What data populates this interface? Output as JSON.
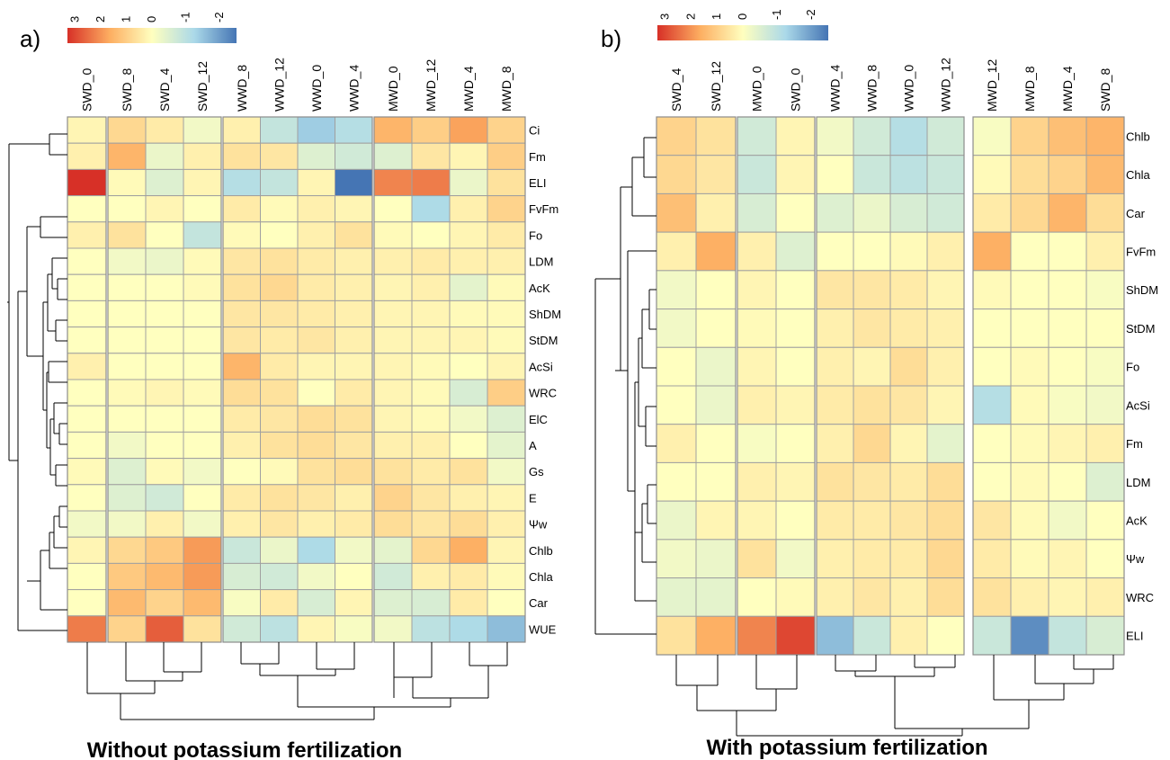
{
  "chart_data": [
    {
      "type": "heatmap",
      "panel_label": "a)",
      "title": "Without potassium fertilization",
      "colorbar": {
        "ticks": [
          "3",
          "2",
          "1",
          "0",
          "-1",
          "-2"
        ],
        "min": -2.5,
        "max": 3.3,
        "colors": [
          "#d73027",
          "#fdae61",
          "#ffffbf",
          "#abd9e9",
          "#4575b4"
        ]
      },
      "col_groups": [
        [
          "SWD_0"
        ],
        [
          "SWD_8",
          "SWD_4",
          "SWD_12"
        ],
        [
          "WWD_8",
          "WWD_12",
          "WWD_0",
          "WWD_4"
        ],
        [
          "MWD_0",
          "MWD_12",
          "MWD_4",
          "MWD_8"
        ]
      ],
      "rows": [
        "Ci",
        "Fm",
        "ELI",
        "FvFm",
        "Fo",
        "LDM",
        "AcK",
        "ShDM",
        "StDM",
        "AcSi",
        "WRC",
        "ElC",
        "A",
        "Gs",
        "E",
        "Ψw",
        "Chlb",
        "Chla",
        "Car",
        "WUE"
      ],
      "values": [
        [
          0.2,
          0.8,
          0.4,
          -0.2,
          0.3,
          -0.9,
          -1.4,
          -1.1,
          1.5,
          1.0,
          1.8,
          0.9
        ],
        [
          0.3,
          1.5,
          -0.3,
          0.3,
          0.6,
          0.5,
          -0.5,
          -0.7,
          -0.5,
          0.5,
          0.2,
          1.0
        ],
        [
          3.3,
          0.1,
          -0.5,
          0.2,
          -1.1,
          -0.9,
          0.2,
          -2.5,
          2.2,
          2.3,
          -0.3,
          0.6
        ],
        [
          0.0,
          0.0,
          0.2,
          0.0,
          0.4,
          0.1,
          0.3,
          0.2,
          0.0,
          -1.2,
          0.3,
          0.9
        ],
        [
          0.3,
          0.6,
          0.0,
          -0.9,
          0.1,
          0.0,
          0.3,
          0.6,
          0.1,
          0.0,
          0.2,
          0.4
        ],
        [
          0.0,
          -0.2,
          -0.3,
          0.1,
          0.5,
          0.6,
          0.4,
          0.3,
          0.3,
          0.4,
          0.3,
          0.3
        ],
        [
          0.0,
          0.0,
          0.0,
          0.1,
          0.6,
          0.8,
          0.4,
          0.3,
          0.2,
          0.3,
          -0.4,
          0.1
        ],
        [
          0.0,
          0.0,
          0.0,
          0.0,
          0.5,
          0.5,
          0.4,
          0.3,
          0.2,
          0.2,
          0.1,
          0.1
        ],
        [
          0.0,
          0.0,
          0.0,
          0.0,
          0.5,
          0.4,
          0.5,
          0.3,
          0.2,
          0.2,
          0.2,
          0.1
        ],
        [
          0.3,
          0.0,
          0.0,
          0.0,
          1.5,
          0.4,
          0.2,
          0.2,
          0.2,
          0.1,
          0.0,
          0.2
        ],
        [
          0.0,
          0.1,
          0.2,
          0.1,
          0.7,
          0.6,
          0.0,
          0.4,
          0.2,
          0.1,
          -0.6,
          1.0
        ],
        [
          0.0,
          0.0,
          0.0,
          0.0,
          0.4,
          0.5,
          0.7,
          0.6,
          0.2,
          0.1,
          -0.2,
          -0.5
        ],
        [
          0.0,
          -0.2,
          0.0,
          0.0,
          0.3,
          0.6,
          0.7,
          0.5,
          0.3,
          0.3,
          0.0,
          -0.4
        ],
        [
          0.1,
          -0.5,
          0.1,
          -0.2,
          0.0,
          0.1,
          0.6,
          0.7,
          0.6,
          0.4,
          0.6,
          -0.2
        ],
        [
          0.0,
          -0.5,
          -0.7,
          0.0,
          0.4,
          0.6,
          0.5,
          0.3,
          0.9,
          0.5,
          0.3,
          0.2
        ],
        [
          -0.2,
          -0.2,
          0.3,
          -0.2,
          0.3,
          0.5,
          0.3,
          0.4,
          0.7,
          0.5,
          0.7,
          0.3
        ],
        [
          0.2,
          0.8,
          1.1,
          1.9,
          -0.8,
          -0.3,
          -1.2,
          -0.2,
          -0.4,
          0.8,
          1.6,
          0.2
        ],
        [
          0.0,
          1.1,
          1.4,
          1.9,
          -0.6,
          -0.7,
          -0.2,
          0.0,
          -0.7,
          0.3,
          0.4,
          0.1
        ],
        [
          0.0,
          1.4,
          0.9,
          1.4,
          -0.1,
          0.4,
          -0.6,
          0.2,
          -0.5,
          -0.6,
          0.4,
          0.0
        ],
        [
          2.3,
          0.9,
          2.7,
          0.6,
          -0.7,
          -1.0,
          0.2,
          -0.1,
          -0.2,
          -1.0,
          -1.2,
          -1.6
        ]
      ]
    },
    {
      "type": "heatmap",
      "panel_label": "b)",
      "title": "With potassium fertilization",
      "colorbar": {
        "ticks": [
          "3",
          "2",
          "1",
          "0",
          "-1",
          "-2"
        ],
        "min": -2.5,
        "max": 3.3,
        "colors": [
          "#d73027",
          "#fdae61",
          "#ffffbf",
          "#abd9e9",
          "#4575b4"
        ]
      },
      "col_groups": [
        [
          "SWD_4",
          "SWD_12"
        ],
        [
          "MWD_0",
          "SWD_0"
        ],
        [
          "WWD_4",
          "WWD_8",
          "WWD_0",
          "WWD_12"
        ],
        [
          "MWD_12",
          "MWD_8",
          "MWD_4",
          "SWD_8"
        ]
      ],
      "rows": [
        "Chlb",
        "Chla",
        "Car",
        "FvFm",
        "ShDM",
        "StDM",
        "Fo",
        "AcSi",
        "Fm",
        "LDM",
        "AcK",
        "Ψw",
        "WRC",
        "ELI"
      ],
      "values": [
        [
          0.9,
          0.6,
          -0.7,
          0.2,
          -0.2,
          -0.7,
          -1.1,
          -0.7,
          -0.1,
          0.9,
          1.3,
          1.5
        ],
        [
          0.8,
          0.5,
          -0.8,
          0.2,
          0.0,
          -0.8,
          -1.0,
          -0.8,
          0.1,
          0.7,
          0.9,
          1.4
        ],
        [
          1.3,
          0.3,
          -0.6,
          0.0,
          -0.5,
          -0.3,
          -0.6,
          -0.7,
          0.4,
          0.8,
          1.5,
          0.7
        ],
        [
          0.3,
          1.6,
          0.3,
          -0.5,
          0.0,
          0.0,
          0.1,
          0.3,
          1.6,
          0.0,
          0.0,
          0.3
        ],
        [
          -0.2,
          0.0,
          0.2,
          0.0,
          0.5,
          0.5,
          0.4,
          0.2,
          0.1,
          0.0,
          0.0,
          -0.1
        ],
        [
          -0.2,
          0.0,
          0.1,
          0.0,
          0.3,
          0.5,
          0.4,
          0.3,
          0.0,
          0.0,
          0.0,
          0.0
        ],
        [
          0.0,
          -0.3,
          0.2,
          0.0,
          0.3,
          0.2,
          0.7,
          0.3,
          0.0,
          0.1,
          0.0,
          -0.1
        ],
        [
          0.0,
          -0.3,
          0.3,
          0.2,
          0.4,
          0.6,
          0.5,
          0.2,
          -1.1,
          0.1,
          -0.1,
          -0.2
        ],
        [
          0.3,
          0.0,
          -0.1,
          0.0,
          0.3,
          0.8,
          0.2,
          -0.4,
          0.0,
          0.1,
          0.2,
          0.3
        ],
        [
          0.0,
          0.0,
          0.3,
          0.2,
          0.6,
          0.5,
          0.4,
          0.7,
          0.0,
          0.1,
          0.0,
          -0.5
        ],
        [
          -0.3,
          0.2,
          0.2,
          0.0,
          0.4,
          0.4,
          0.5,
          0.7,
          0.5,
          0.1,
          -0.2,
          0.0
        ],
        [
          -0.2,
          -0.3,
          0.6,
          -0.2,
          0.3,
          0.4,
          0.4,
          0.8,
          0.4,
          0.1,
          0.2,
          0.0
        ],
        [
          -0.4,
          -0.4,
          0.0,
          0.1,
          0.3,
          0.5,
          0.3,
          0.7,
          0.6,
          0.3,
          0.2,
          0.3
        ],
        [
          0.6,
          1.6,
          2.2,
          3.0,
          -1.6,
          -0.8,
          0.3,
          0.0,
          -0.8,
          -2.2,
          -0.9,
          -0.6
        ]
      ]
    }
  ]
}
